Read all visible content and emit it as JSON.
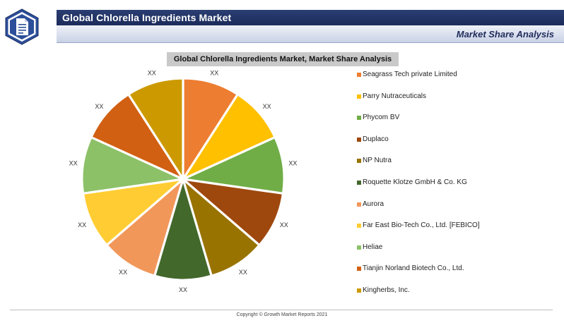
{
  "header": {
    "title": "Global Chlorella Ingredients Market",
    "subtitle": "Market Share Analysis",
    "logo_icon": "document-icon"
  },
  "chart_data": {
    "type": "pie",
    "title": "Global Chlorella Ingredients Market, Market Share Analysis",
    "legend_placement": "right",
    "slices": [
      {
        "name": "Seagrass Tech private Limited",
        "value": 1,
        "label": "XX",
        "color": "#ed7d31"
      },
      {
        "name": "Parry Nutraceuticals",
        "value": 1,
        "label": "XX",
        "color": "#ffc000"
      },
      {
        "name": "Phycom BV",
        "value": 1,
        "label": "XX",
        "color": "#70ad47"
      },
      {
        "name": "Duplaco",
        "value": 1,
        "label": "XX",
        "color": "#9e480e"
      },
      {
        "name": "NP Nutra",
        "value": 1,
        "label": "XX",
        "color": "#997300"
      },
      {
        "name": "Roquette Klotze GmbH & Co. KG",
        "value": 1,
        "label": "XX",
        "color": "#43682b"
      },
      {
        "name": "Aurora",
        "value": 1,
        "label": "XX",
        "color": "#f1975a"
      },
      {
        "name": "Far East Bio-Tech Co., Ltd. [FEBICO]",
        "value": 1,
        "label": "XX",
        "color": "#ffcd33"
      },
      {
        "name": "Heliae",
        "value": 1,
        "label": "XX",
        "color": "#8cc168"
      },
      {
        "name": "Tianjin Norland Biotech Co., Ltd.",
        "value": 1,
        "label": "XX",
        "color": "#d26012"
      },
      {
        "name": "Kingherbs, Inc.",
        "value": 1,
        "label": "XX",
        "color": "#cc9a00"
      }
    ]
  },
  "footer": {
    "copyright": "Copyright © Growth Market Reports 2021"
  }
}
